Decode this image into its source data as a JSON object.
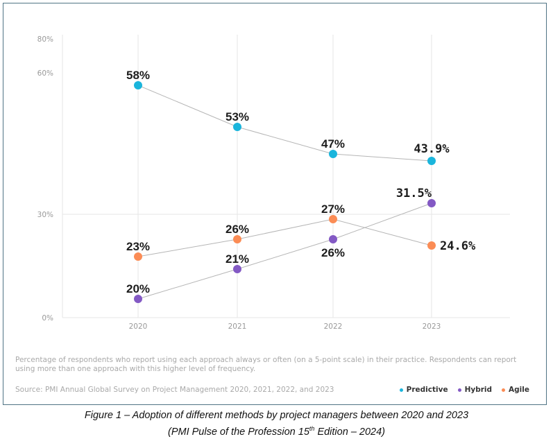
{
  "chart_data": {
    "type": "line",
    "title": "",
    "xlabel": "",
    "ylabel": "",
    "x": [
      "2020",
      "2021",
      "2022",
      "2023"
    ],
    "y_ticks": [
      "0%",
      "30%",
      "60%",
      "80%"
    ],
    "ylim": [
      0,
      80
    ],
    "grid": true,
    "legend_position": "bottom-right",
    "series": [
      {
        "name": "Predictive",
        "color": "#1ab5dc",
        "values": [
          58,
          53,
          47,
          43.9
        ],
        "labels": [
          "58%",
          "53%",
          "47%",
          "43.9%"
        ]
      },
      {
        "name": "Hybrid",
        "color": "#8359c4",
        "values": [
          20,
          21,
          26,
          31.5
        ],
        "labels": [
          "20%",
          "21%",
          "26%",
          "31.5%"
        ]
      },
      {
        "name": "Agile",
        "color": "#fb8c55",
        "values": [
          23,
          26,
          27,
          24.6
        ],
        "labels": [
          "23%",
          "26%",
          "27%",
          "24.6%"
        ]
      }
    ]
  },
  "note": "Percentage of respondents who report using each approach always or often (on a 5-point scale) in their practice. Respondents can report using more than one approach with this higher level of frequency.",
  "source": "Source: PMI Annual Global Survey on Project Management 2020, 2021, 2022, and 2023",
  "legend": [
    {
      "label": "Predictive",
      "color": "#1ab5dc"
    },
    {
      "label": "Hybrid",
      "color": "#8359c4"
    },
    {
      "label": "Agile",
      "color": "#fb8c55"
    }
  ],
  "caption": {
    "line1": "Figure 1 – Adoption of different methods by project managers between 2020 and 2023",
    "line2_pre": "(PMI Pulse of the Profession 15",
    "line2_sup": "th",
    "line2_post": " Edition – 2024)"
  }
}
